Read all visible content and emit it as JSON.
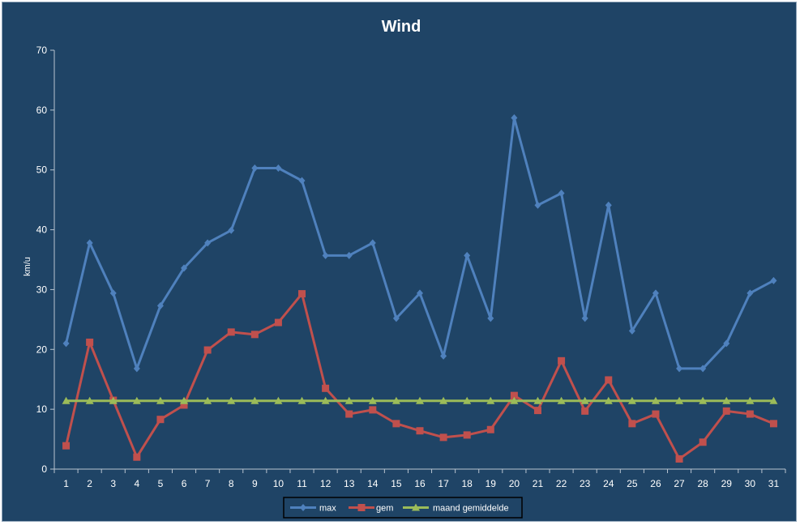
{
  "chart_data": {
    "type": "line",
    "title": "Wind",
    "xlabel": "",
    "ylabel": "km/u",
    "ylim": [
      0,
      70
    ],
    "yticks": [
      0,
      10,
      20,
      30,
      40,
      50,
      60,
      70
    ],
    "grid": false,
    "legend_position": "bottom",
    "background_color": "#1f4466",
    "categories": [
      "1",
      "2",
      "3",
      "4",
      "5",
      "6",
      "7",
      "8",
      "9",
      "10",
      "11",
      "12",
      "13",
      "14",
      "15",
      "16",
      "17",
      "18",
      "19",
      "20",
      "21",
      "22",
      "23",
      "24",
      "25",
      "26",
      "27",
      "28",
      "29",
      "30",
      "31"
    ],
    "series": [
      {
        "name": "max",
        "color": "#4f81bd",
        "marker": "diamond",
        "values": [
          21.0,
          37.8,
          29.4,
          16.8,
          27.3,
          33.6,
          37.8,
          39.9,
          50.3,
          50.3,
          48.2,
          35.7,
          35.7,
          37.8,
          25.2,
          29.4,
          18.9,
          35.7,
          25.2,
          58.7,
          44.1,
          46.1,
          25.2,
          44.1,
          23.1,
          29.4,
          16.8,
          16.8,
          21.0,
          29.4,
          31.5
        ]
      },
      {
        "name": "gem",
        "color": "#c0504d",
        "marker": "square",
        "values": [
          3.9,
          21.2,
          11.5,
          2.0,
          8.3,
          10.7,
          19.9,
          22.9,
          22.5,
          24.5,
          29.3,
          13.5,
          9.2,
          9.9,
          7.6,
          6.4,
          5.3,
          5.7,
          6.6,
          12.3,
          9.8,
          18.1,
          9.7,
          14.9,
          7.6,
          9.2,
          1.7,
          4.5,
          9.7,
          9.2,
          7.6
        ]
      },
      {
        "name": "maand gemiddelde",
        "color": "#9bbb59",
        "marker": "triangle",
        "values": [
          11.4,
          11.4,
          11.4,
          11.4,
          11.4,
          11.4,
          11.4,
          11.4,
          11.4,
          11.4,
          11.4,
          11.4,
          11.4,
          11.4,
          11.4,
          11.4,
          11.4,
          11.4,
          11.4,
          11.4,
          11.4,
          11.4,
          11.4,
          11.4,
          11.4,
          11.4,
          11.4,
          11.4,
          11.4,
          11.4,
          11.4
        ]
      }
    ]
  }
}
